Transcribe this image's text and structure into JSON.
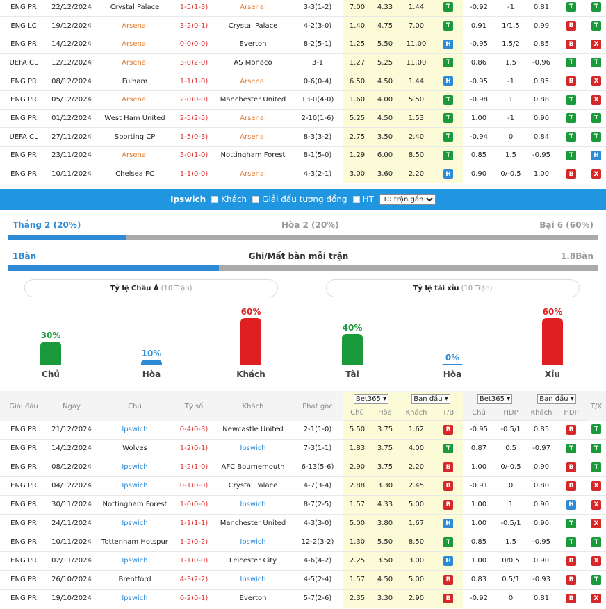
{
  "top_matches": [
    {
      "league": "ENG PR",
      "date": "22/12/2024",
      "home": "Crystal Palace",
      "score": "1-5(1-3)",
      "away": "Arsenal",
      "corner": "3-3(1-2)",
      "o1": "7.00",
      "o2": "4.33",
      "o3": "1.44",
      "tb": "T",
      "h1": "-0.92",
      "hdp": "-1",
      "h2": "0.81",
      "r1": "T",
      "r2": "T",
      "home_hl": false,
      "away_hl": true
    },
    {
      "league": "ENG LC",
      "date": "19/12/2024",
      "home": "Arsenal",
      "score": "3-2(0-1)",
      "away": "Crystal Palace",
      "corner": "4-2(3-0)",
      "o1": "1.40",
      "o2": "4.75",
      "o3": "7.00",
      "tb": "T",
      "h1": "0.91",
      "hdp": "1/1.5",
      "h2": "0.99",
      "r1": "B",
      "r2": "T",
      "home_hl": true,
      "away_hl": false
    },
    {
      "league": "ENG PR",
      "date": "14/12/2024",
      "home": "Arsenal",
      "score": "0-0(0-0)",
      "away": "Everton",
      "corner": "8-2(5-1)",
      "o1": "1.25",
      "o2": "5.50",
      "o3": "11.00",
      "tb": "H",
      "h1": "-0.95",
      "hdp": "1.5/2",
      "h2": "0.85",
      "r1": "B",
      "r2": "X",
      "home_hl": true,
      "away_hl": false
    },
    {
      "league": "UEFA CL",
      "date": "12/12/2024",
      "home": "Arsenal",
      "score": "3-0(2-0)",
      "away": "AS Monaco",
      "corner": "3-1",
      "o1": "1.27",
      "o2": "5.25",
      "o3": "11.00",
      "tb": "T",
      "h1": "0.86",
      "hdp": "1.5",
      "h2": "-0.96",
      "r1": "T",
      "r2": "T",
      "home_hl": true,
      "away_hl": false
    },
    {
      "league": "ENG PR",
      "date": "08/12/2024",
      "home": "Fulham",
      "score": "1-1(1-0)",
      "away": "Arsenal",
      "corner": "0-6(0-4)",
      "o1": "6.50",
      "o2": "4.50",
      "o3": "1.44",
      "tb": "H",
      "h1": "-0.95",
      "hdp": "-1",
      "h2": "0.85",
      "r1": "B",
      "r2": "X",
      "home_hl": false,
      "away_hl": true
    },
    {
      "league": "ENG PR",
      "date": "05/12/2024",
      "home": "Arsenal",
      "score": "2-0(0-0)",
      "away": "Manchester United",
      "corner": "13-0(4-0)",
      "o1": "1.60",
      "o2": "4.00",
      "o3": "5.50",
      "tb": "T",
      "h1": "-0.98",
      "hdp": "1",
      "h2": "0.88",
      "r1": "T",
      "r2": "X",
      "home_hl": true,
      "away_hl": false
    },
    {
      "league": "ENG PR",
      "date": "01/12/2024",
      "home": "West Ham United",
      "score": "2-5(2-5)",
      "away": "Arsenal",
      "corner": "2-10(1-6)",
      "o1": "5.25",
      "o2": "4.50",
      "o3": "1.53",
      "tb": "T",
      "h1": "1.00",
      "hdp": "-1",
      "h2": "0.90",
      "r1": "T",
      "r2": "T",
      "home_hl": false,
      "away_hl": true
    },
    {
      "league": "UEFA CL",
      "date": "27/11/2024",
      "home": "Sporting CP",
      "score": "1-5(0-3)",
      "away": "Arsenal",
      "corner": "8-3(3-2)",
      "o1": "2.75",
      "o2": "3.50",
      "o3": "2.40",
      "tb": "T",
      "h1": "-0.94",
      "hdp": "0",
      "h2": "0.84",
      "r1": "T",
      "r2": "T",
      "home_hl": false,
      "away_hl": true
    },
    {
      "league": "ENG PR",
      "date": "23/11/2024",
      "home": "Arsenal",
      "score": "3-0(1-0)",
      "away": "Nottingham Forest",
      "corner": "8-1(5-0)",
      "o1": "1.29",
      "o2": "6.00",
      "o3": "8.50",
      "tb": "T",
      "h1": "0.85",
      "hdp": "1.5",
      "h2": "-0.95",
      "r1": "T",
      "r2": "H",
      "home_hl": true,
      "away_hl": false
    },
    {
      "league": "ENG PR",
      "date": "10/11/2024",
      "home": "Chelsea FC",
      "score": "1-1(0-0)",
      "away": "Arsenal",
      "corner": "4-3(2-1)",
      "o1": "3.00",
      "o2": "3.60",
      "o3": "2.20",
      "tb": "H",
      "h1": "0.90",
      "hdp": "0/-0.5",
      "h2": "1.00",
      "r1": "B",
      "r2": "X",
      "home_hl": false,
      "away_hl": true
    }
  ],
  "filter": {
    "team": "Ipswich",
    "opt1": "Khách",
    "opt2": "Giải đấu tương đồng",
    "opt3": "HT",
    "select": "10 trận gần"
  },
  "stats": {
    "win": "Thắng 2 (20%)",
    "draw": "Hòa 2 (20%)",
    "lose": "Bại 6 (60%)",
    "win_fraction": 0.2,
    "goals_left": "1Bàn",
    "goals_title": "Ghi/Mất bàn mỗi trận",
    "goals_right": "1.8Bàn",
    "goals_fraction": 0.357
  },
  "asian": {
    "title": "Tỷ lệ Châu Á",
    "count": "(10 Trận)",
    "cols": [
      {
        "pct": "30%",
        "label": "Chủ",
        "value": 30,
        "color": "#1a9a3a"
      },
      {
        "pct": "10%",
        "label": "Hòa",
        "value": 10,
        "color": "#2f8ad6"
      },
      {
        "pct": "60%",
        "label": "Khách",
        "value": 60,
        "color": "#e02020"
      }
    ]
  },
  "ou": {
    "title": "Tỷ lệ tài xỉu",
    "count": "(10 Trận)",
    "cols": [
      {
        "pct": "40%",
        "label": "Tài",
        "value": 40,
        "color": "#1a9a3a"
      },
      {
        "pct": "0%",
        "label": "Hòa",
        "value": 0,
        "color": "#2f8ad6"
      },
      {
        "pct": "60%",
        "label": "Xỉu",
        "value": 60,
        "color": "#e02020"
      }
    ]
  },
  "table_header": {
    "league": "Giải đấu",
    "date": "Ngày",
    "home": "Chủ",
    "score": "Tỷ số",
    "away": "Khách",
    "corner": "Phạt góc",
    "bookie": "Bet365",
    "initial": "Ban đầu",
    "bookie2": "Bet365",
    "initial2": "Ban đầu",
    "tx": "T/X",
    "sub": [
      "Chủ",
      "Hòa",
      "Khách",
      "T/B",
      "Chủ",
      "HDP",
      "Khách",
      "HDP"
    ]
  },
  "bottom_matches": [
    {
      "league": "ENG PR",
      "date": "21/12/2024",
      "home": "Ipswich",
      "score": "0-4(0-3)",
      "away": "Newcastle United",
      "corner": "2-1(1-0)",
      "o1": "5.50",
      "o2": "3.75",
      "o3": "1.62",
      "tb": "B",
      "h1": "-0.95",
      "hdp": "-0.5/1",
      "h2": "0.85",
      "r1": "B",
      "r2": "T",
      "home_hl": true,
      "away_hl": false,
      "win": false
    },
    {
      "league": "ENG PR",
      "date": "14/12/2024",
      "home": "Wolves",
      "score": "1-2(0-1)",
      "away": "Ipswich",
      "corner": "7-3(1-1)",
      "o1": "1.83",
      "o2": "3.75",
      "o3": "4.00",
      "tb": "T",
      "h1": "0.87",
      "hdp": "0.5",
      "h2": "-0.97",
      "r1": "T",
      "r2": "T",
      "home_hl": false,
      "away_hl": true,
      "win": true
    },
    {
      "league": "ENG PR",
      "date": "08/12/2024",
      "home": "Ipswich",
      "score": "1-2(1-0)",
      "away": "AFC Bournemouth",
      "corner": "6-13(5-6)",
      "o1": "2.90",
      "o2": "3.75",
      "o3": "2.20",
      "tb": "B",
      "h1": "1.00",
      "hdp": "0/-0.5",
      "h2": "0.90",
      "r1": "B",
      "r2": "T",
      "home_hl": true,
      "away_hl": false,
      "win": false
    },
    {
      "league": "ENG PR",
      "date": "04/12/2024",
      "home": "Ipswich",
      "score": "0-1(0-0)",
      "away": "Crystal Palace",
      "corner": "4-7(3-4)",
      "o1": "2.88",
      "o2": "3.30",
      "o3": "2.45",
      "tb": "B",
      "h1": "-0.91",
      "hdp": "0",
      "h2": "0.80",
      "r1": "B",
      "r2": "X",
      "home_hl": true,
      "away_hl": false,
      "win": false
    },
    {
      "league": "ENG PR",
      "date": "30/11/2024",
      "home": "Nottingham Forest",
      "score": "1-0(0-0)",
      "away": "Ipswich",
      "corner": "8-7(2-5)",
      "o1": "1.57",
      "o2": "4.33",
      "o3": "5.00",
      "tb": "B",
      "h1": "1.00",
      "hdp": "1",
      "h2": "0.90",
      "r1": "H",
      "r2": "X",
      "home_hl": false,
      "away_hl": true,
      "win": false
    },
    {
      "league": "ENG PR",
      "date": "24/11/2024",
      "home": "Ipswich",
      "score": "1-1(1-1)",
      "away": "Manchester United",
      "corner": "4-3(3-0)",
      "o1": "5.00",
      "o2": "3.80",
      "o3": "1.67",
      "tb": "H",
      "h1": "1.00",
      "hdp": "-0.5/1",
      "h2": "0.90",
      "r1": "T",
      "r2": "X",
      "home_hl": true,
      "away_hl": false,
      "win": false
    },
    {
      "league": "ENG PR",
      "date": "10/11/2024",
      "home": "Tottenham Hotspur",
      "score": "1-2(0-2)",
      "away": "Ipswich",
      "corner": "12-2(3-2)",
      "o1": "1.30",
      "o2": "5.50",
      "o3": "8.50",
      "tb": "T",
      "h1": "0.85",
      "hdp": "1.5",
      "h2": "-0.95",
      "r1": "T",
      "r2": "T",
      "home_hl": false,
      "away_hl": true,
      "win": true
    },
    {
      "league": "ENG PR",
      "date": "02/11/2024",
      "home": "Ipswich",
      "score": "1-1(0-0)",
      "away": "Leicester City",
      "corner": "4-6(4-2)",
      "o1": "2.25",
      "o2": "3.50",
      "o3": "3.00",
      "tb": "H",
      "h1": "1.00",
      "hdp": "0/0.5",
      "h2": "0.90",
      "r1": "B",
      "r2": "X",
      "home_hl": true,
      "away_hl": false,
      "win": false
    },
    {
      "league": "ENG PR",
      "date": "26/10/2024",
      "home": "Brentford",
      "score": "4-3(2-2)",
      "away": "Ipswich",
      "corner": "4-5(2-4)",
      "o1": "1.57",
      "o2": "4.50",
      "o3": "5.00",
      "tb": "B",
      "h1": "0.83",
      "hdp": "0.5/1",
      "h2": "-0.93",
      "r1": "B",
      "r2": "T",
      "home_hl": false,
      "away_hl": true,
      "win": false
    },
    {
      "league": "ENG PR",
      "date": "19/10/2024",
      "home": "Ipswich",
      "score": "0-2(0-1)",
      "away": "Everton",
      "corner": "5-7(2-6)",
      "o1": "2.35",
      "o2": "3.30",
      "o3": "2.90",
      "tb": "B",
      "h1": "-0.92",
      "hdp": "0",
      "h2": "0.81",
      "r1": "B",
      "r2": "X",
      "home_hl": true,
      "away_hl": false,
      "win": false
    }
  ]
}
